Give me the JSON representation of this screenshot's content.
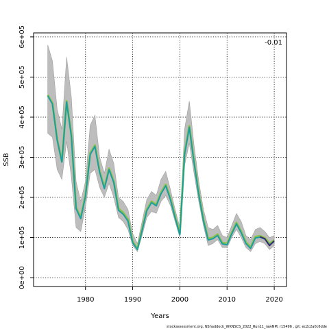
{
  "chart_data": {
    "type": "line",
    "xlabel": "Years",
    "ylabel": "SSB",
    "corner_label": "-0.01",
    "caption": "stockassessment.org, NShaddock_WKNSCS_2022_Run11_rawNM, r15496 , git: ec2c2a0c6dde",
    "xlim": [
      1969.0,
      2022.6
    ],
    "ylim": [
      -22000,
      610000
    ],
    "x_ticks": [
      1980,
      1990,
      2000,
      2010,
      2020
    ],
    "x_tick_labels": [
      "1980",
      "1990",
      "2000",
      "2010",
      "2020"
    ],
    "y_ticks": [
      0,
      100000,
      200000,
      300000,
      400000,
      500000,
      600000
    ],
    "y_tick_labels": [
      "0e+00",
      "1e+05",
      "2e+05",
      "3e+05",
      "4e+05",
      "5e+05",
      "6e+05"
    ],
    "grid": true,
    "years": [
      1972,
      1973,
      1974,
      1975,
      1976,
      1977,
      1978,
      1979,
      1980,
      1981,
      1982,
      1983,
      1984,
      1985,
      1986,
      1987,
      1988,
      1989,
      1990,
      1991,
      1992,
      1993,
      1994,
      1995,
      1996,
      1997,
      1998,
      1999,
      2000,
      2001,
      2002,
      2003,
      2004,
      2005,
      2006,
      2007,
      2008,
      2009,
      2010,
      2011,
      2012,
      2013,
      2014,
      2015,
      2016,
      2017,
      2018,
      2019,
      2020
    ],
    "ci_upper": [
      580000,
      540000,
      420000,
      370000,
      550000,
      450000,
      240000,
      190000,
      240000,
      380000,
      405000,
      300000,
      260000,
      320000,
      285000,
      200000,
      190000,
      170000,
      110000,
      85000,
      140000,
      195000,
      215000,
      205000,
      245000,
      265000,
      220000,
      170000,
      125000,
      370000,
      440000,
      330000,
      240000,
      170000,
      125000,
      120000,
      130000,
      105000,
      100000,
      130000,
      160000,
      140000,
      105000,
      95000,
      120000,
      125000,
      115000,
      100000,
      105000
    ],
    "ci_lower": [
      360000,
      350000,
      270000,
      245000,
      340000,
      250000,
      125000,
      115000,
      175000,
      260000,
      270000,
      225000,
      200000,
      235000,
      200000,
      150000,
      140000,
      120000,
      80000,
      65000,
      105000,
      150000,
      165000,
      160000,
      190000,
      205000,
      180000,
      140000,
      100000,
      280000,
      335000,
      260000,
      190000,
      130000,
      80000,
      85000,
      95000,
      75000,
      75000,
      100000,
      120000,
      100000,
      75000,
      65000,
      85000,
      90000,
      85000,
      70000,
      80000
    ],
    "series": [
      {
        "name": "",
        "color": "#8bc34a",
        "values": [
          455000,
          435000,
          345000,
          290000,
          440000,
          355000,
          175000,
          150000,
          205000,
          310000,
          330000,
          265000,
          225000,
          272000,
          240000,
          172000,
          162000,
          145000,
          90000,
          72000,
          120000,
          170000,
          190000,
          182000,
          212000,
          232000,
          198000,
          152000,
          110000,
          310000,
          378000,
          290000,
          210000,
          145000,
          97000,
          100000,
          108000,
          87000,
          85000,
          112000,
          137000,
          115000,
          88000,
          76000,
          102000,
          104000,
          99000,
          85000,
          93000
        ]
      },
      {
        "name": "",
        "color": "#1a9ea0",
        "values": [
          453000,
          433000,
          343000,
          288000,
          438000,
          353000,
          172000,
          147000,
          203000,
          307000,
          327000,
          262000,
          222000,
          269000,
          237000,
          168000,
          158000,
          141000,
          87000,
          70000,
          117000,
          167000,
          187000,
          179000,
          209000,
          229000,
          195000,
          149000,
          107000,
          307000,
          375000,
          287000,
          207000,
          142000,
          94000,
          97000,
          105000,
          84000,
          82000,
          109000,
          134000,
          112000,
          85000,
          73000,
          99000,
          101000,
          96000,
          82000,
          90000
        ]
      },
      {
        "name": "",
        "color": "#3a2a6e",
        "values": [
          null,
          null,
          null,
          null,
          null,
          null,
          null,
          null,
          null,
          null,
          null,
          null,
          null,
          null,
          null,
          null,
          null,
          null,
          null,
          null,
          null,
          null,
          null,
          null,
          null,
          null,
          null,
          null,
          null,
          null,
          null,
          null,
          null,
          null,
          null,
          null,
          null,
          null,
          null,
          null,
          null,
          null,
          null,
          null,
          null,
          102000,
          97000,
          80000,
          92000
        ]
      }
    ]
  }
}
